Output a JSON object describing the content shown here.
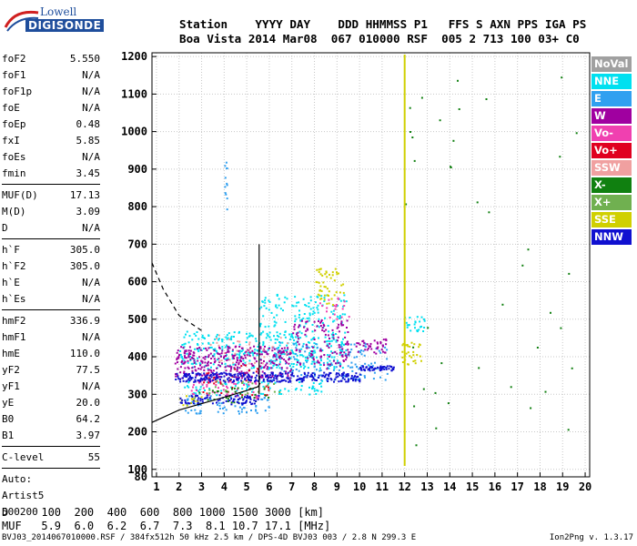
{
  "logo": {
    "top": "Lowell",
    "bottom": "DIGISONDE"
  },
  "header": {
    "line1": "Station    YYYY DAY    DDD HHMMSS P1   FFS S AXN PPS IGA PS",
    "line2": "Boa Vista 2014 Mar08  067 010000 RSF  005 2 713 100 03+ C0"
  },
  "params": [
    {
      "label": "foF2",
      "value": "5.550"
    },
    {
      "label": "foF1",
      "value": "N/A"
    },
    {
      "label": "foF1p",
      "value": "N/A"
    },
    {
      "label": "foE",
      "value": "N/A"
    },
    {
      "label": "foEp",
      "value": "0.48"
    },
    {
      "label": "fxI",
      "value": "5.85"
    },
    {
      "label": "foEs",
      "value": "N/A"
    },
    {
      "label": "fmin",
      "value": "3.45"
    },
    {
      "sep": true
    },
    {
      "label": "MUF(D)",
      "value": "17.13"
    },
    {
      "label": "M(D)",
      "value": "3.09"
    },
    {
      "label": "D",
      "value": "N/A"
    },
    {
      "sep": true
    },
    {
      "label": "h`F",
      "value": "305.0"
    },
    {
      "label": "h`F2",
      "value": "305.0"
    },
    {
      "label": "h`E",
      "value": "N/A"
    },
    {
      "label": "h`Es",
      "value": "N/A"
    },
    {
      "sep": true
    },
    {
      "label": "hmF2",
      "value": "336.9"
    },
    {
      "label": "hmF1",
      "value": "N/A"
    },
    {
      "label": "hmE",
      "value": "110.0"
    },
    {
      "label": "yF2",
      "value": "77.5"
    },
    {
      "label": "yF1",
      "value": "N/A"
    },
    {
      "label": "yE",
      "value": "20.0"
    },
    {
      "label": "B0",
      "value": "64.2"
    },
    {
      "label": "B1",
      "value": "3.97"
    },
    {
      "sep": true
    },
    {
      "label": "C-level",
      "value": "55"
    },
    {
      "sep": true
    },
    {
      "text": "Auto:"
    },
    {
      "text": "Artist5"
    },
    {
      "text": "500200"
    }
  ],
  "legend": [
    {
      "label": "NoVal",
      "color": "#a0a0a0"
    },
    {
      "label": "NNE",
      "color": "#00e0f0"
    },
    {
      "label": "E",
      "color": "#30a0f0"
    },
    {
      "label": "W",
      "color": "#a000a0"
    },
    {
      "label": "Vo-",
      "color": "#f040b0"
    },
    {
      "label": "Vo+",
      "color": "#e00020"
    },
    {
      "label": "SSW",
      "color": "#f0a0a0"
    },
    {
      "label": "X-",
      "color": "#108010"
    },
    {
      "label": "X+",
      "color": "#70b050"
    },
    {
      "label": "SSE",
      "color": "#d0d000"
    },
    {
      "label": "NNW",
      "color": "#1010d0"
    }
  ],
  "dmuf": {
    "dline": "D     100  200  400  600  800 1000 1500 3000 [km]",
    "mufline": "MUF   5.9  6.0  6.2  6.7  7.3  8.1 10.7 17.1 [MHz]"
  },
  "footer": "BVJ03_2014067010000.RSF / 384fx512h 50 kHz 2.5 km / DPS-4D BVJ03 003 / 2.8 N 299.3 E",
  "version": "Ion2Png v. 1.3.17",
  "chart_data": {
    "type": "scatter",
    "title": "",
    "xlabel": "",
    "ylabel": "",
    "xlim": [
      0.8,
      20.2
    ],
    "ylim": [
      80,
      1210
    ],
    "xticks": [
      1,
      2,
      3,
      4,
      5,
      6,
      7,
      8,
      9,
      10,
      11,
      12,
      13,
      14,
      15,
      16,
      17,
      18,
      19,
      20
    ],
    "yticks": [
      80,
      100,
      200,
      300,
      400,
      500,
      600,
      700,
      800,
      900,
      1000,
      1100,
      1200
    ],
    "grid": true,
    "legend_position": "right",
    "series": [
      {
        "name": "NNE",
        "color": "#00e0f0",
        "regions": [
          {
            "x": [
              2.0,
              9.4
            ],
            "y": [
              370,
              470
            ],
            "n": 380
          },
          {
            "x": [
              5.5,
              9.4
            ],
            "y": [
              480,
              570
            ],
            "n": 120
          },
          {
            "x": [
              2.2,
              8.5
            ],
            "y": [
              300,
              340
            ],
            "n": 80
          },
          {
            "x": [
              11.9,
              12.9
            ],
            "y": [
              470,
              510
            ],
            "n": 25
          }
        ]
      },
      {
        "name": "E",
        "color": "#30a0f0",
        "regions": [
          {
            "x": [
              2.2,
              6.0
            ],
            "y": [
              250,
              300
            ],
            "n": 70
          },
          {
            "x": [
              5.5,
              11.2
            ],
            "y": [
              340,
              440
            ],
            "n": 160
          },
          {
            "x": [
              4.0,
              4.1
            ],
            "y": [
              780,
              930
            ],
            "n": 12
          }
        ]
      },
      {
        "name": "W",
        "color": "#a000a0",
        "regions": [
          {
            "x": [
              1.8,
              7.0
            ],
            "y": [
              345,
              430
            ],
            "n": 320
          },
          {
            "x": [
              7.0,
              9.5
            ],
            "y": [
              370,
              500
            ],
            "n": 120
          },
          {
            "x": [
              9.8,
              11.2
            ],
            "y": [
              410,
              450
            ],
            "n": 40
          }
        ]
      },
      {
        "name": "Vo-",
        "color": "#f040b0",
        "regions": [
          {
            "x": [
              2.5,
              5.5
            ],
            "y": [
              290,
              340
            ],
            "n": 60
          },
          {
            "x": [
              8.0,
              9.5
            ],
            "y": [
              500,
              560
            ],
            "n": 20
          }
        ]
      },
      {
        "name": "Vo+",
        "color": "#e00020",
        "regions": [
          {
            "x": [
              3.0,
              6.0
            ],
            "y": [
              300,
              380
            ],
            "n": 40
          }
        ]
      },
      {
        "name": "SSW",
        "color": "#f0a0a0",
        "regions": [
          {
            "x": [
              3.0,
              7.0
            ],
            "y": [
              380,
              460
            ],
            "n": 30
          }
        ]
      },
      {
        "name": "X-",
        "color": "#108010",
        "regions": [
          {
            "x": [
              2.5,
              6.0
            ],
            "y": [
              280,
              320
            ],
            "n": 30
          },
          {
            "x": [
              12.0,
              20.0
            ],
            "y": [
              150,
              1150
            ],
            "n": 40
          }
        ]
      },
      {
        "name": "X+",
        "color": "#70b050",
        "regions": [
          {
            "x": [
              3.0,
              6.5
            ],
            "y": [
              300,
              340
            ],
            "n": 20
          }
        ]
      },
      {
        "name": "SSE",
        "color": "#d0d000",
        "regions": [
          {
            "x": [
              8.0,
              9.3
            ],
            "y": [
              540,
              640
            ],
            "n": 50
          },
          {
            "x": [
              11.8,
              12.7
            ],
            "y": [
              380,
              440
            ],
            "n": 30
          },
          {
            "x": [
              2.0,
              3.0
            ],
            "y": [
              270,
              300
            ],
            "n": 15
          }
        ]
      },
      {
        "name": "NNW",
        "color": "#1010d0",
        "regions": [
          {
            "x": [
              1.8,
              10.0
            ],
            "y": [
              335,
              360
            ],
            "n": 300
          },
          {
            "x": [
              10.0,
              11.5
            ],
            "y": [
              365,
              378
            ],
            "n": 60
          },
          {
            "x": [
              2.0,
              5.5
            ],
            "y": [
              275,
              300
            ],
            "n": 80
          }
        ]
      }
    ],
    "vertical_line_x": 12.0,
    "profile_curve": {
      "x": [
        0.8,
        2.0,
        3.0,
        4.0,
        5.0,
        5.5,
        5.6
      ],
      "y": [
        225,
        258,
        275,
        292,
        310,
        320,
        330
      ]
    },
    "dashed_curve": {
      "x": [
        0.8,
        1.3,
        2.0,
        3.0
      ],
      "y": [
        650,
        580,
        510,
        470
      ]
    },
    "foF2_line": {
      "x": 5.55,
      "y": [
        300,
        700
      ]
    }
  }
}
